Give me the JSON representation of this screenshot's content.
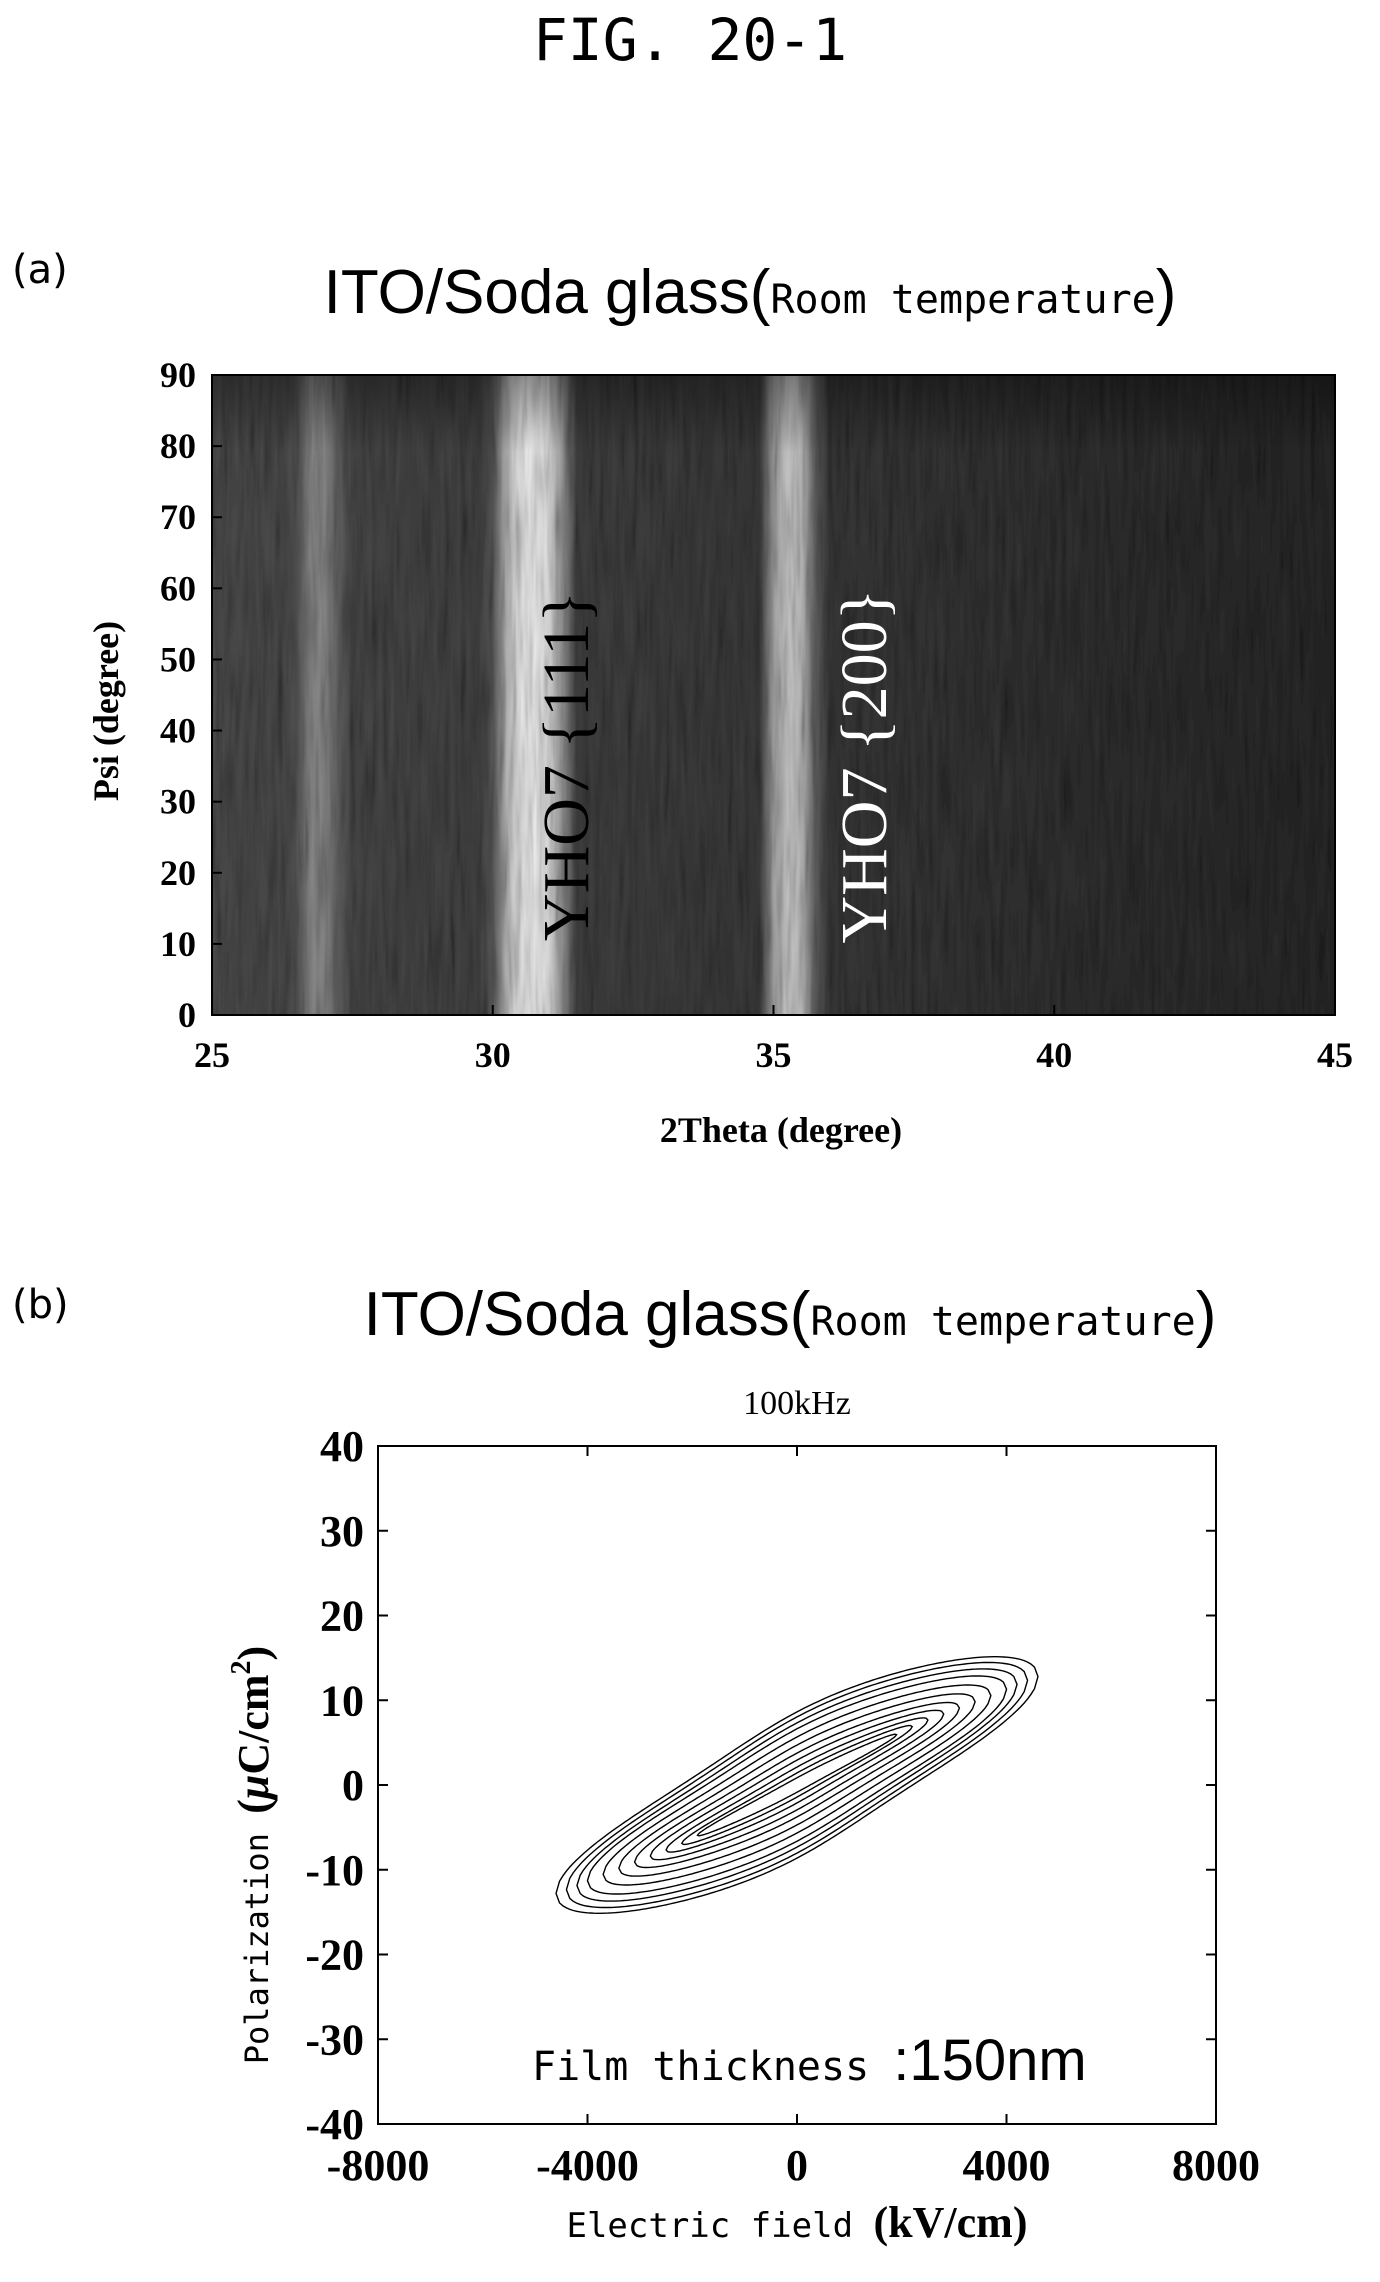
{
  "figure": {
    "title": "FIG. 20-1",
    "panel_a_label": "(a)",
    "panel_b_label": "(b)"
  },
  "chart_data": [
    {
      "type": "heatmap",
      "title_main": "ITO/Soda glass(",
      "title_small": "Room temperature",
      "title_close": ")",
      "xlabel": "2Theta (degree)",
      "ylabel": "Psi (degree)",
      "xlim": [
        25,
        45
      ],
      "ylim": [
        0,
        90
      ],
      "xticks": [
        25,
        30,
        35,
        40,
        45
      ],
      "yticks": [
        0,
        10,
        20,
        30,
        40,
        50,
        60,
        70,
        80,
        90
      ],
      "colormap": "grayscale, bright = high intensity",
      "bright_bands_2theta": [
        {
          "center": 26.9,
          "width": 1.0,
          "level": 0.55
        },
        {
          "center": 30.7,
          "width": 1.4,
          "level": 0.95
        },
        {
          "center": 35.3,
          "width": 1.0,
          "level": 0.8
        }
      ],
      "annotations": [
        {
          "text": "YHO7 {111}",
          "x": 31.7,
          "y": 35,
          "color": "#000000",
          "rotation": -90
        },
        {
          "text": "YHO7 {200}",
          "x": 37.0,
          "y": 35,
          "color": "#ffffff",
          "rotation": -90
        }
      ]
    },
    {
      "type": "line",
      "title_main": "ITO/Soda glass(",
      "title_small": "Room temperature",
      "title_close": ")",
      "subtitle": "100kHz",
      "xlabel_prefix": "Electric field ",
      "xlabel_unit": "(kV/cm)",
      "ylabel_prefix": "Polarization ",
      "ylabel_unit_pre": "(",
      "ylabel_unit_mu": "μ",
      "ylabel_unit_mid": "C/cm",
      "ylabel_unit_sup": "2",
      "ylabel_unit_post": ")",
      "xlim": [
        -8000,
        8000
      ],
      "ylim": [
        -40,
        40
      ],
      "xticks": [
        -8000,
        -4000,
        0,
        4000,
        8000
      ],
      "yticks": [
        -40,
        -30,
        -20,
        -10,
        0,
        10,
        20,
        30,
        40
      ],
      "annotation_label": "Film thickness ",
      "annotation_value": ":150nm",
      "hysteresis_loops": [
        {
          "Emax": 1900,
          "Pmax": 6.5,
          "Pr": 0.8,
          "Ec": 150
        },
        {
          "Emax": 2200,
          "Pmax": 7.8,
          "Pr": 1.3,
          "Ec": 250
        },
        {
          "Emax": 2500,
          "Pmax": 9.0,
          "Pr": 1.9,
          "Ec": 350
        },
        {
          "Emax": 2800,
          "Pmax": 10.2,
          "Pr": 2.6,
          "Ec": 450
        },
        {
          "Emax": 3100,
          "Pmax": 11.4,
          "Pr": 3.3,
          "Ec": 550
        },
        {
          "Emax": 3400,
          "Pmax": 12.7,
          "Pr": 4.1,
          "Ec": 650
        },
        {
          "Emax": 3700,
          "Pmax": 14.0,
          "Pr": 4.9,
          "Ec": 750
        },
        {
          "Emax": 4000,
          "Pmax": 15.3,
          "Pr": 5.7,
          "Ec": 850
        },
        {
          "Emax": 4200,
          "Pmax": 16.3,
          "Pr": 6.3,
          "Ec": 900
        },
        {
          "Emax": 4400,
          "Pmax": 17.2,
          "Pr": 6.9,
          "Ec": 950
        },
        {
          "Emax": 4600,
          "Pmax": 18.0,
          "Pr": 7.4,
          "Ec": 1000
        }
      ]
    }
  ]
}
